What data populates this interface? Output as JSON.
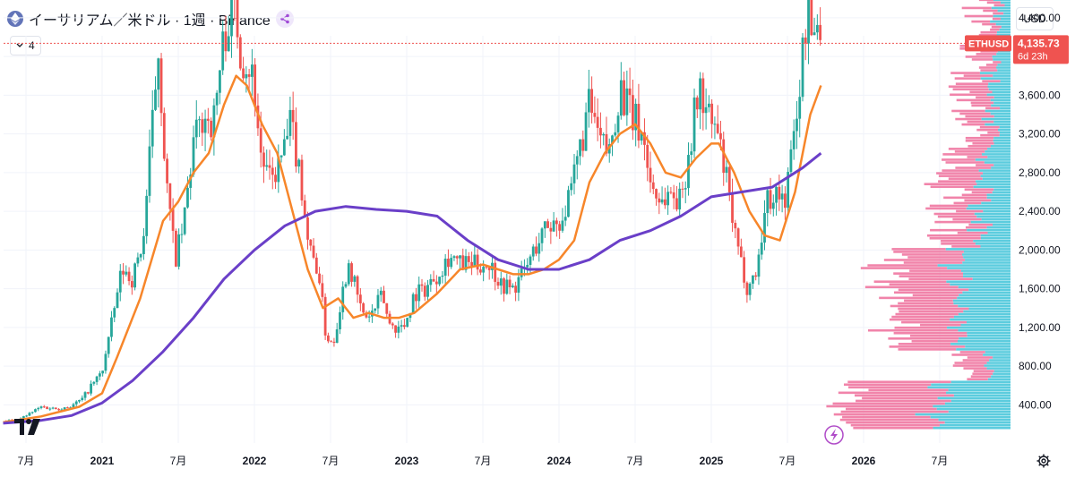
{
  "header": {
    "title": "イーサリアム／米ドル · 1週 · Binance",
    "indicator_count": "4",
    "currency": "USD"
  },
  "colors": {
    "up": "#26a69a",
    "down": "#ef5350",
    "ma_fast": "#f7862a",
    "ma_slow": "#6a3fc8",
    "vp_up": "#3fc3d8",
    "vp_down": "#ef6f9b",
    "price_label": "#ef5350"
  },
  "price_label": {
    "symbol": "ETHUSD",
    "value": "4,135.73",
    "countdown": "6d 23h"
  },
  "chart_data": {
    "type": "candlestick",
    "title": "イーサリアム／米ドル · 1週 · Binance",
    "y_axis": {
      "ylim": [
        0,
        5000
      ],
      "ticks": [
        400,
        800,
        1200,
        1600,
        2000,
        2400,
        2800,
        3200,
        3600,
        4000,
        4400,
        4800
      ],
      "tick_labels": [
        "400.00",
        "800.00",
        "1,200.00",
        "1,600.00",
        "2,000.00",
        "2,400.00",
        "2,800.00",
        "3,200.00",
        "3,600.00",
        "4,000.00",
        "4,400.00",
        "4,800.00"
      ]
    },
    "x_axis": {
      "tick_labels": [
        "7月",
        "2021",
        "7月",
        "2022",
        "7月",
        "2023",
        "7月",
        "2024",
        "7月",
        "2025",
        "7月",
        "2026",
        "7月"
      ],
      "tick_dates": [
        2020.5,
        2021.0,
        2021.5,
        2022.0,
        2022.5,
        2023.0,
        2023.5,
        2024.0,
        2024.5,
        2025.0,
        2025.5,
        2026.0,
        2026.5
      ]
    },
    "last_price": 4135.73,
    "price_path": [
      [
        2020.35,
        230
      ],
      [
        2020.45,
        240
      ],
      [
        2020.6,
        380
      ],
      [
        2020.7,
        360
      ],
      [
        2020.8,
        390
      ],
      [
        2020.87,
        460
      ],
      [
        2020.93,
        600
      ],
      [
        2021.0,
        740
      ],
      [
        2021.07,
        1300
      ],
      [
        2021.13,
        1800
      ],
      [
        2021.2,
        1700
      ],
      [
        2021.27,
        2100
      ],
      [
        2021.32,
        3100
      ],
      [
        2021.37,
        4100
      ],
      [
        2021.42,
        2700
      ],
      [
        2021.48,
        1900
      ],
      [
        2021.53,
        2200
      ],
      [
        2021.6,
        3100
      ],
      [
        2021.67,
        3400
      ],
      [
        2021.73,
        3300
      ],
      [
        2021.8,
        4200
      ],
      [
        2021.86,
        4600
      ],
      [
        2021.92,
        4000
      ],
      [
        2021.97,
        3900
      ],
      [
        2022.0,
        3700
      ],
      [
        2022.04,
        3000
      ],
      [
        2022.1,
        2700
      ],
      [
        2022.17,
        2900
      ],
      [
        2022.24,
        3300
      ],
      [
        2022.3,
        2800
      ],
      [
        2022.36,
        2000
      ],
      [
        2022.42,
        1800
      ],
      [
        2022.47,
        1100
      ],
      [
        2022.52,
        1050
      ],
      [
        2022.57,
        1500
      ],
      [
        2022.62,
        1900
      ],
      [
        2022.67,
        1550
      ],
      [
        2022.72,
        1300
      ],
      [
        2022.78,
        1350
      ],
      [
        2022.84,
        1550
      ],
      [
        2022.88,
        1250
      ],
      [
        2022.93,
        1200
      ],
      [
        2022.98,
        1200
      ],
      [
        2023.05,
        1550
      ],
      [
        2023.12,
        1600
      ],
      [
        2023.2,
        1750
      ],
      [
        2023.28,
        1950
      ],
      [
        2023.35,
        1850
      ],
      [
        2023.45,
        1850
      ],
      [
        2023.55,
        1850
      ],
      [
        2023.62,
        1650
      ],
      [
        2023.7,
        1600
      ],
      [
        2023.78,
        1800
      ],
      [
        2023.85,
        2050
      ],
      [
        2023.92,
        2250
      ],
      [
        2024.0,
        2300
      ],
      [
        2024.07,
        2500
      ],
      [
        2024.13,
        3000
      ],
      [
        2024.2,
        3500
      ],
      [
        2024.27,
        3100
      ],
      [
        2024.33,
        3000
      ],
      [
        2024.4,
        3700
      ],
      [
        2024.47,
        3400
      ],
      [
        2024.55,
        3200
      ],
      [
        2024.6,
        2700
      ],
      [
        2024.67,
        2500
      ],
      [
        2024.73,
        2600
      ],
      [
        2024.8,
        2500
      ],
      [
        2024.86,
        3100
      ],
      [
        2024.92,
        3700
      ],
      [
        2024.97,
        3400
      ],
      [
        2025.04,
        3200
      ],
      [
        2025.1,
        2700
      ],
      [
        2025.17,
        2000
      ],
      [
        2025.24,
        1600
      ],
      [
        2025.3,
        1800
      ],
      [
        2025.36,
        2500
      ],
      [
        2025.42,
        2600
      ],
      [
        2025.48,
        2500
      ],
      [
        2025.53,
        3000
      ],
      [
        2025.58,
        3700
      ],
      [
        2025.63,
        4500
      ],
      [
        2025.66,
        4200
      ],
      [
        2025.7,
        4400
      ],
      [
        2025.72,
        4135.73
      ]
    ],
    "series": [
      {
        "name": "MA (fast)",
        "x": [
          2020.35,
          2020.6,
          2020.85,
          2021.0,
          2021.1,
          2021.25,
          2021.4,
          2021.5,
          2021.6,
          2021.7,
          2021.8,
          2021.88,
          2021.95,
          2022.05,
          2022.15,
          2022.25,
          2022.35,
          2022.45,
          2022.55,
          2022.65,
          2022.75,
          2022.85,
          2022.95,
          2023.05,
          2023.2,
          2023.35,
          2023.5,
          2023.6,
          2023.7,
          2023.8,
          2023.9,
          2024.0,
          2024.1,
          2024.2,
          2024.3,
          2024.4,
          2024.5,
          2024.6,
          2024.7,
          2024.8,
          2024.9,
          2025.0,
          2025.05,
          2025.15,
          2025.25,
          2025.35,
          2025.45,
          2025.55,
          2025.65,
          2025.72
        ],
        "y": [
          220,
          280,
          380,
          520,
          900,
          1500,
          2300,
          2500,
          2800,
          3000,
          3500,
          3800,
          3700,
          3300,
          3000,
          2400,
          1800,
          1400,
          1500,
          1300,
          1350,
          1300,
          1300,
          1350,
          1550,
          1800,
          1850,
          1800,
          1750,
          1750,
          1800,
          1900,
          2100,
          2700,
          3000,
          3200,
          3300,
          3100,
          2800,
          2750,
          2950,
          3100,
          3100,
          2800,
          2400,
          2150,
          2100,
          2600,
          3400,
          3700
        ]
      },
      {
        "name": "MA (slow)",
        "x": [
          2020.35,
          2020.6,
          2020.8,
          2021.0,
          2021.2,
          2021.4,
          2021.6,
          2021.8,
          2022.0,
          2022.2,
          2022.4,
          2022.6,
          2022.8,
          2023.0,
          2023.2,
          2023.4,
          2023.6,
          2023.8,
          2024.0,
          2024.2,
          2024.4,
          2024.6,
          2024.8,
          2025.0,
          2025.2,
          2025.4,
          2025.6,
          2025.72
        ],
        "y": [
          210,
          240,
          290,
          420,
          650,
          950,
          1300,
          1700,
          2000,
          2250,
          2400,
          2450,
          2420,
          2400,
          2350,
          2100,
          1900,
          1800,
          1800,
          1900,
          2100,
          2200,
          2350,
          2550,
          2600,
          2650,
          2850,
          3000
        ]
      }
    ]
  }
}
